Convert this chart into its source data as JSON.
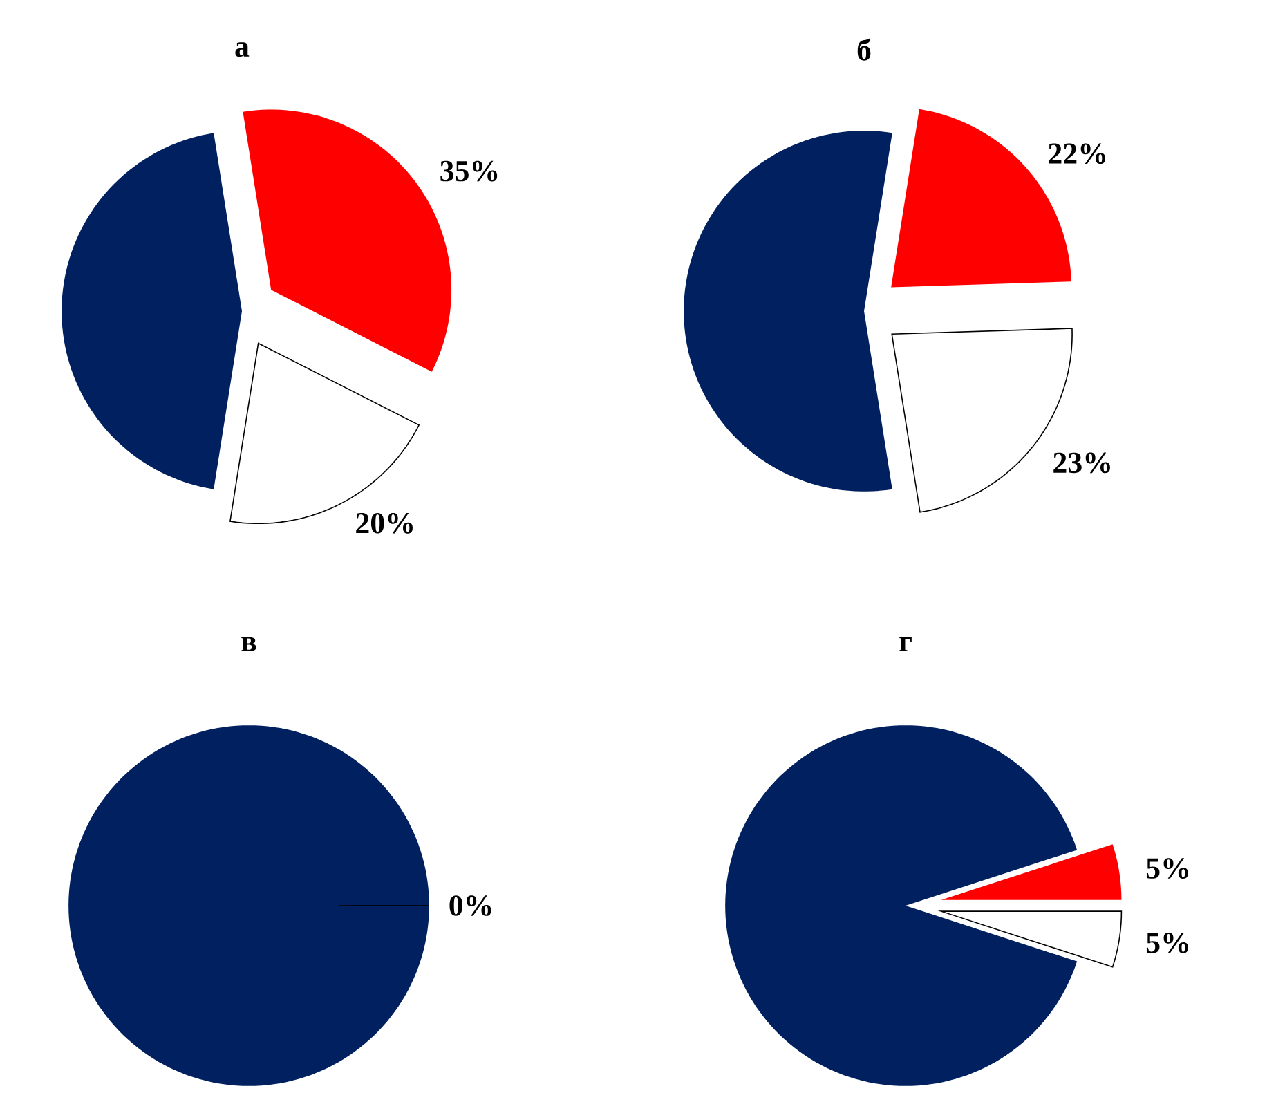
{
  "chart_data": [
    {
      "type": "pie",
      "title": "а",
      "categories": [
        null,
        null,
        null
      ],
      "values": [
        45,
        35,
        20
      ],
      "colors": [
        "#002060",
        "#ff0000",
        "#ffffff"
      ],
      "value_labels": [
        null,
        "35%",
        "20%"
      ]
    },
    {
      "type": "pie",
      "title": "б",
      "categories": [
        null,
        null,
        null
      ],
      "values": [
        55,
        22,
        23
      ],
      "colors": [
        "#002060",
        "#ff0000",
        "#ffffff"
      ],
      "value_labels": [
        null,
        "22%",
        "23%"
      ]
    },
    {
      "type": "pie",
      "title": "в",
      "categories": [
        null,
        null,
        null
      ],
      "values": [
        100,
        0,
        0
      ],
      "colors": [
        "#002060",
        "#ff0000",
        "#ffffff"
      ],
      "value_labels": [
        null,
        "0%",
        null
      ]
    },
    {
      "type": "pie",
      "title": "г",
      "categories": [
        null,
        null,
        null
      ],
      "values": [
        90,
        5,
        5
      ],
      "colors": [
        "#002060",
        "#ff0000",
        "#ffffff"
      ],
      "value_labels": [
        null,
        "5%",
        "5%"
      ]
    }
  ]
}
